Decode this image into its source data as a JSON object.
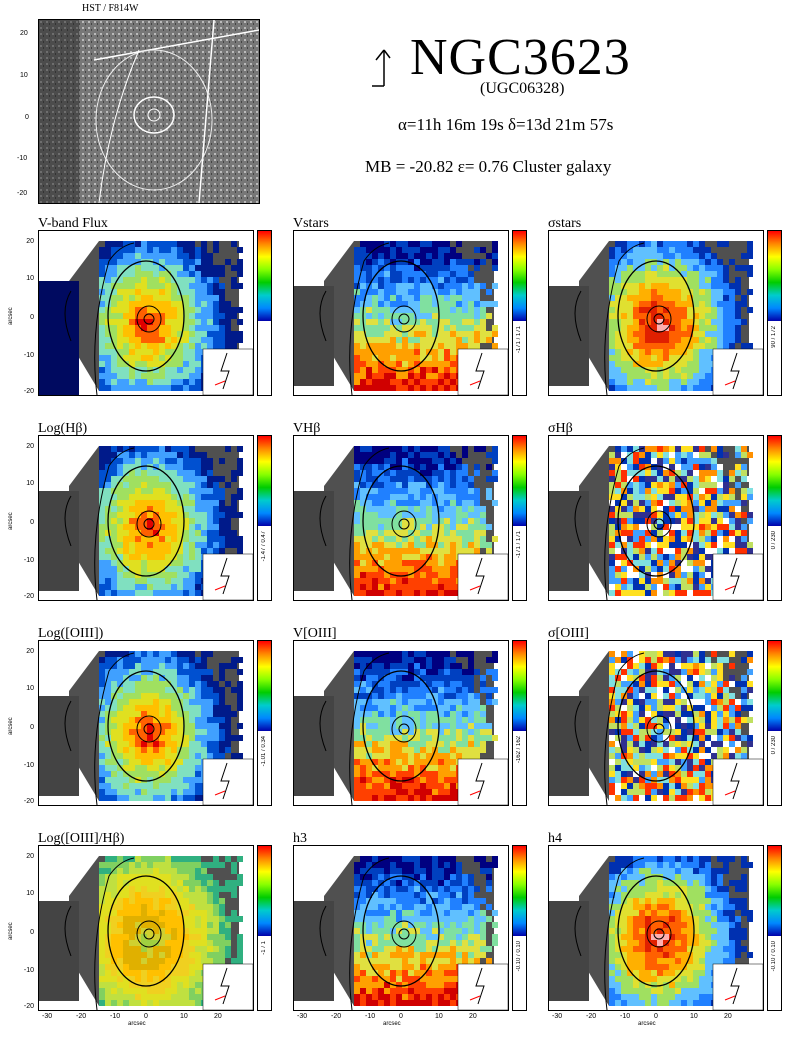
{
  "header": {
    "hst_label": "HST / F814W",
    "galaxy_name": "NGC3623",
    "alt_name": "(UGC06328)",
    "coords": "α=11h 16m 19s   δ=13d 21m 57s",
    "props": "MB = -20.82    ε= 0.76    Cluster galaxy"
  },
  "axes": {
    "x_name": "arcsec",
    "y_name": "arcsec",
    "y_ticks": [
      "20",
      "10",
      "0",
      "-10",
      "-20"
    ],
    "x_ticks": [
      "-30",
      "-20",
      "-10",
      "0",
      "10",
      "20"
    ]
  },
  "panels": [
    {
      "title": "V-band Flux",
      "range": "",
      "style": "flux"
    },
    {
      "title": "Vstars",
      "range": "-171 / 171",
      "style": "vel"
    },
    {
      "title": "σstars",
      "range": "90 / 172",
      "style": "sigma"
    },
    {
      "title": "Log(Hβ)",
      "range": "-1.47 / 0.47",
      "style": "flux"
    },
    {
      "title": "VHβ",
      "range": "-171 / 171",
      "style": "vel"
    },
    {
      "title": "σHβ",
      "range": "0 / 230",
      "style": "noise"
    },
    {
      "title": "Log([OIII])",
      "range": "-1.01 / 0.34",
      "style": "flux"
    },
    {
      "title": "V[OIII]",
      "range": "-162 / 162",
      "style": "vel"
    },
    {
      "title": "σ[OIII]",
      "range": "0 / 230",
      "style": "noise"
    },
    {
      "title": "Log([OIII]/Hβ)",
      "range": "-1 / 1",
      "style": "ratio"
    },
    {
      "title": "h3",
      "range": "-0.10 / 0.10",
      "style": "vel"
    },
    {
      "title": "h4",
      "range": "-0.10 / 0.10",
      "style": "sigma"
    }
  ]
}
